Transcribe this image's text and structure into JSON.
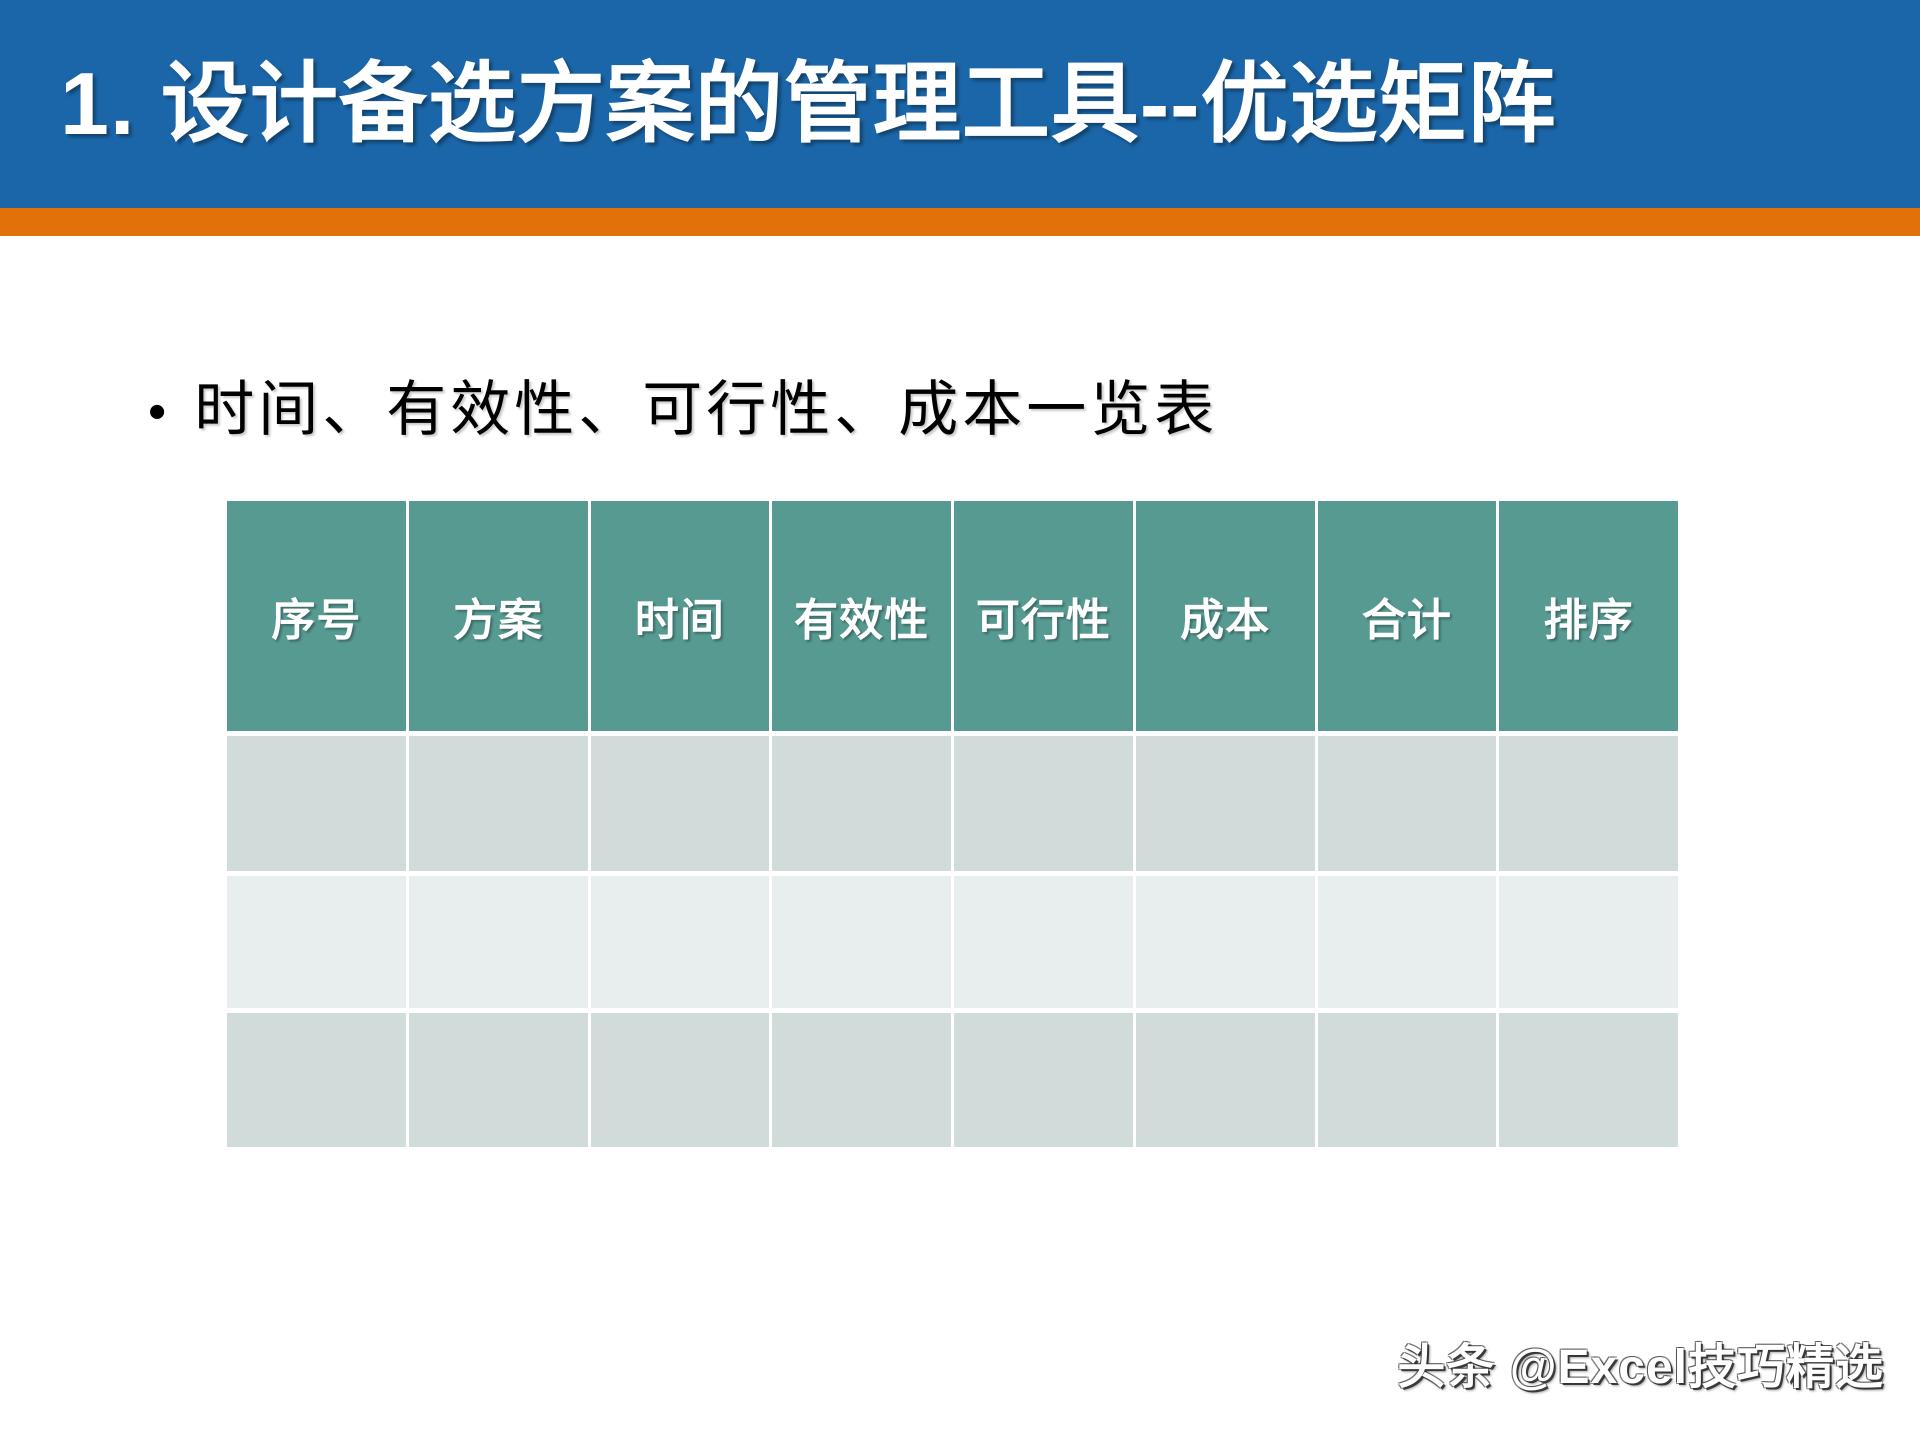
{
  "slide": {
    "title": "1. 设计备选方案的管理工具--优选矩阵",
    "bullet_glyph": "•",
    "bullet_text": "时间、有效性、可行性、成本一览表",
    "watermark": "头条 @Excel技巧精选"
  },
  "colors": {
    "banner_blue": "#1B66A8",
    "stripe_orange": "#E2710A",
    "table_header_teal": "#569A92",
    "row_shade_dark": "#D1DCDA",
    "row_shade_light": "#E8EEED",
    "title_text": "#FFFFFF",
    "body_text": "#000000"
  },
  "table": {
    "columns": [
      "序号",
      "方案",
      "时间",
      "有效性",
      "可行性",
      "成本",
      "合计",
      "排序"
    ],
    "rows": [
      [
        "",
        "",
        "",
        "",
        "",
        "",
        "",
        ""
      ],
      [
        "",
        "",
        "",
        "",
        "",
        "",
        "",
        ""
      ],
      [
        "",
        "",
        "",
        "",
        "",
        "",
        "",
        ""
      ]
    ]
  }
}
